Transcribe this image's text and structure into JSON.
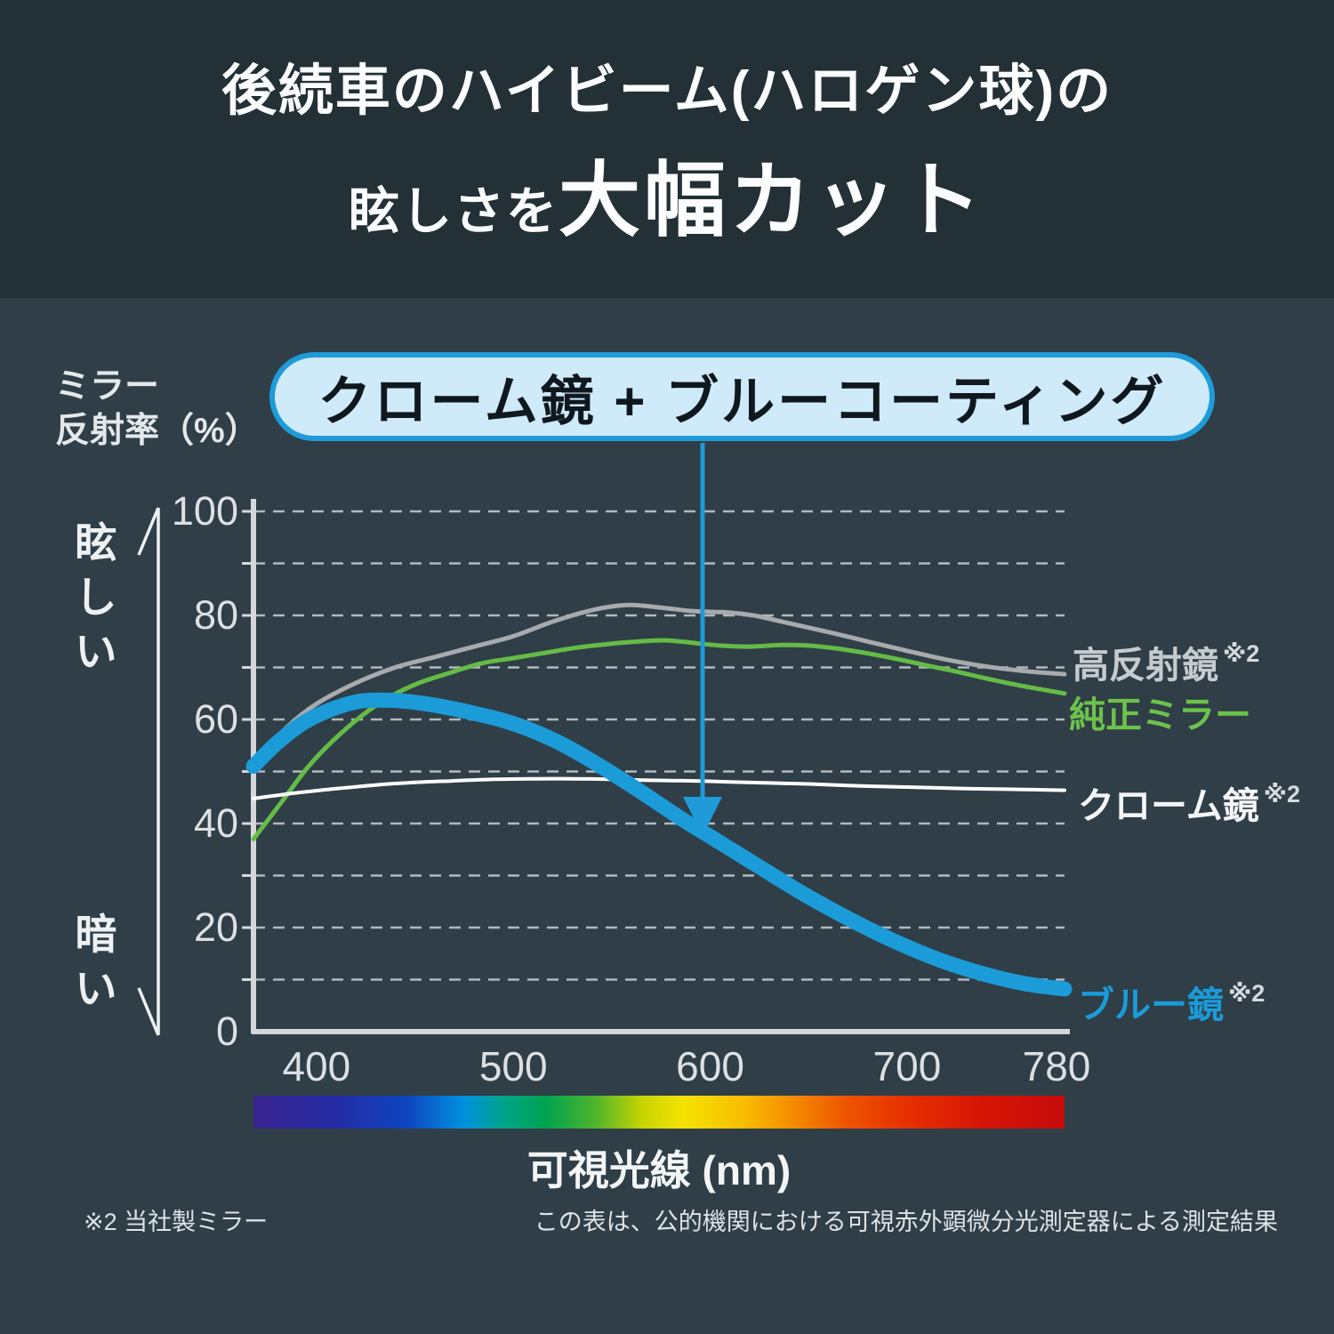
{
  "header": {
    "title_line1": "後続車のハイビーム(ハロゲン球)の",
    "title_line2_small": "眩しさを",
    "title_line2_large": "大幅カット"
  },
  "callout": {
    "text": "クローム鏡 + ブルーコーティング"
  },
  "axis": {
    "y_label_line1": "ミラー",
    "y_label_line2": "反射率（%）",
    "bright_label": "眩しい",
    "dark_label": "暗い",
    "x_caption": "可視光線 (nm)"
  },
  "footnotes": {
    "left": "※2 当社製ミラー",
    "right": "この表は、公的機関における可視赤外顕微分光測定器による測定結果"
  },
  "colors": {
    "accent_blue": "#1e9bd8",
    "axis_line": "#d4d8da",
    "gridline": "#c9ced1",
    "arrow_white": "#eef1f2"
  },
  "chart_data": {
    "type": "line",
    "title": "",
    "xlabel": "可視光線 (nm)",
    "ylabel": "ミラー反射率（%）",
    "xlim": [
      368,
      780
    ],
    "ylim": [
      0,
      100
    ],
    "xticks": [
      400,
      500,
      600,
      700,
      780
    ],
    "yticks": [
      0,
      20,
      40,
      60,
      80,
      100
    ],
    "grid": "horizontal dashed every 10",
    "legend_position": "right",
    "annotation": "クローム鏡 + ブルーコーティング",
    "series": [
      {
        "name": "高反射鏡",
        "note": "※2",
        "color": "#a7abad",
        "label_color": "#c6cbce",
        "width": 5,
        "points": [
          [
            368,
            52
          ],
          [
            385,
            58.5
          ],
          [
            400,
            63
          ],
          [
            420,
            67
          ],
          [
            440,
            70
          ],
          [
            460,
            72
          ],
          [
            480,
            74
          ],
          [
            500,
            76
          ],
          [
            520,
            78.8
          ],
          [
            540,
            81
          ],
          [
            558,
            82
          ],
          [
            575,
            81.5
          ],
          [
            592,
            80.8
          ],
          [
            608,
            80.6
          ],
          [
            622,
            80
          ],
          [
            640,
            78.5
          ],
          [
            660,
            76.8
          ],
          [
            680,
            75
          ],
          [
            700,
            73.2
          ],
          [
            720,
            71.5
          ],
          [
            740,
            70.2
          ],
          [
            760,
            69.3
          ],
          [
            780,
            68.7
          ]
        ]
      },
      {
        "name": "純正ミラー",
        "note": "",
        "color": "#64bb46",
        "label_color": "#6cc24a",
        "width": 5,
        "points": [
          [
            368,
            37
          ],
          [
            382,
            44
          ],
          [
            396,
            51
          ],
          [
            410,
            56.5
          ],
          [
            424,
            61
          ],
          [
            438,
            64.5
          ],
          [
            452,
            67
          ],
          [
            468,
            69
          ],
          [
            484,
            70.8
          ],
          [
            500,
            71.8
          ],
          [
            516,
            72.8
          ],
          [
            532,
            73.8
          ],
          [
            548,
            74.5
          ],
          [
            564,
            75
          ],
          [
            578,
            75.2
          ],
          [
            592,
            74.7
          ],
          [
            605,
            74.2
          ],
          [
            620,
            74
          ],
          [
            636,
            74.3
          ],
          [
            650,
            74.2
          ],
          [
            665,
            73.6
          ],
          [
            680,
            72.7
          ],
          [
            695,
            71.6
          ],
          [
            710,
            70.4
          ],
          [
            725,
            69.2
          ],
          [
            740,
            67.9
          ],
          [
            755,
            66.7
          ],
          [
            768,
            65.8
          ],
          [
            780,
            65
          ]
        ]
      },
      {
        "name": "クローム鏡",
        "note": "※2",
        "color": "#ffffff",
        "label_color": "#f4f6f7",
        "width": 4,
        "points": [
          [
            368,
            44.8
          ],
          [
            390,
            45.9
          ],
          [
            410,
            46.7
          ],
          [
            430,
            47.4
          ],
          [
            450,
            47.9
          ],
          [
            470,
            48.2
          ],
          [
            490,
            48.5
          ],
          [
            510,
            48.6
          ],
          [
            530,
            48.6
          ],
          [
            550,
            48.5
          ],
          [
            570,
            48.3
          ],
          [
            590,
            48.2
          ],
          [
            610,
            48
          ],
          [
            630,
            47.8
          ],
          [
            650,
            47.6
          ],
          [
            670,
            47.3
          ],
          [
            690,
            47.1
          ],
          [
            710,
            46.9
          ],
          [
            730,
            46.7
          ],
          [
            750,
            46.6
          ],
          [
            780,
            46.4
          ]
        ]
      },
      {
        "name": "ブルー鏡",
        "note": "※2",
        "color": "#1b9bd8",
        "label_color": "#1b9bd8",
        "width": 17,
        "points": [
          [
            368,
            51
          ],
          [
            380,
            55.5
          ],
          [
            394,
            59.5
          ],
          [
            408,
            62
          ],
          [
            422,
            63.5
          ],
          [
            436,
            63.7
          ],
          [
            450,
            63.3
          ],
          [
            465,
            62.4
          ],
          [
            480,
            61.2
          ],
          [
            495,
            59.8
          ],
          [
            510,
            57.8
          ],
          [
            525,
            55.2
          ],
          [
            540,
            52
          ],
          [
            555,
            48.5
          ],
          [
            570,
            44.8
          ],
          [
            585,
            41
          ],
          [
            600,
            37.5
          ],
          [
            615,
            34
          ],
          [
            630,
            30.5
          ],
          [
            645,
            27
          ],
          [
            660,
            23.8
          ],
          [
            675,
            20.8
          ],
          [
            690,
            18
          ],
          [
            705,
            15.5
          ],
          [
            720,
            13.3
          ],
          [
            735,
            11.5
          ],
          [
            750,
            10
          ],
          [
            765,
            8.9
          ],
          [
            780,
            8.2
          ]
        ]
      }
    ],
    "spectrum_stops": [
      {
        "pos": 0,
        "color": "#39248f"
      },
      {
        "pos": 10,
        "color": "#242ba4"
      },
      {
        "pos": 19,
        "color": "#0e46c0"
      },
      {
        "pos": 26,
        "color": "#0092de"
      },
      {
        "pos": 31,
        "color": "#00a487"
      },
      {
        "pos": 36,
        "color": "#00a350"
      },
      {
        "pos": 42,
        "color": "#4cb42d"
      },
      {
        "pos": 48,
        "color": "#c8d400"
      },
      {
        "pos": 53,
        "color": "#f4e300"
      },
      {
        "pos": 60,
        "color": "#f8c000"
      },
      {
        "pos": 66,
        "color": "#f49000"
      },
      {
        "pos": 73,
        "color": "#ee5500"
      },
      {
        "pos": 81,
        "color": "#e62e00"
      },
      {
        "pos": 90,
        "color": "#d61505"
      },
      {
        "pos": 100,
        "color": "#c60b0b"
      }
    ]
  }
}
